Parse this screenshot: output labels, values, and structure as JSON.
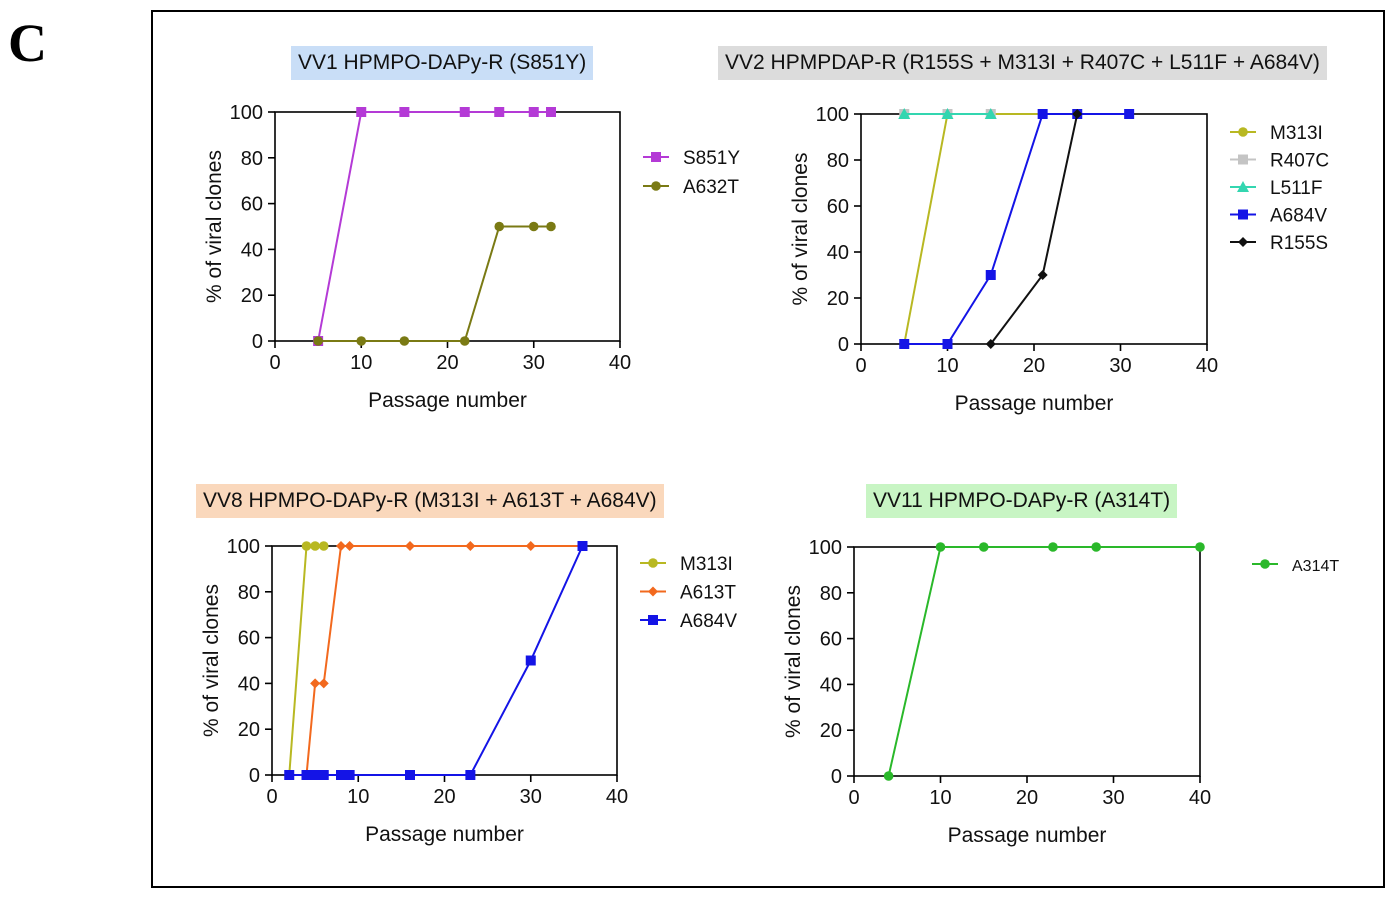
{
  "panel_label": "C",
  "chart_data": [
    {
      "type": "line",
      "title": "VV1 HPMPO-DAPy-R  (S851Y)",
      "title_bg": "#c9def7",
      "xlabel": "Passage number",
      "ylabel": "% of viral clones",
      "xlim": [
        0,
        40
      ],
      "ylim": [
        0,
        100
      ],
      "xticks": [
        0,
        10,
        20,
        30,
        40
      ],
      "yticks": [
        0,
        20,
        40,
        60,
        80,
        100
      ],
      "legend_position": "right",
      "series": [
        {
          "name": "S851Y",
          "color": "#b43ad6",
          "marker": "square",
          "x": [
            5,
            10,
            15,
            22,
            26,
            30,
            32
          ],
          "y": [
            0,
            100,
            100,
            100,
            100,
            100,
            100
          ]
        },
        {
          "name": "A632T",
          "color": "#7a7a14",
          "marker": "circle",
          "x": [
            5,
            10,
            15,
            22,
            26,
            30,
            32
          ],
          "y": [
            0,
            0,
            0,
            0,
            50,
            50,
            50
          ]
        }
      ]
    },
    {
      "type": "line",
      "title": "VV2 HPMPDAP-R  (R155S + M313I + R407C + L511F + A684V)",
      "title_bg": "#dcdcdc",
      "xlabel": "Passage number",
      "ylabel": "% of viral clones",
      "xlim": [
        0,
        40
      ],
      "ylim": [
        0,
        100
      ],
      "xticks": [
        0,
        10,
        20,
        30,
        40
      ],
      "yticks": [
        0,
        20,
        40,
        60,
        80,
        100
      ],
      "legend_position": "right",
      "series": [
        {
          "name": "M313I",
          "color": "#b8b822",
          "marker": "circle",
          "x": [
            5,
            10,
            15,
            21,
            25,
            31
          ],
          "y": [
            0,
            100,
            100,
            100,
            100,
            100
          ]
        },
        {
          "name": "R407C",
          "color": "#c4c4c4",
          "marker": "square",
          "x": [
            5,
            10,
            15
          ],
          "y": [
            100,
            100,
            100
          ]
        },
        {
          "name": "L511F",
          "color": "#33d6b0",
          "marker": "triangle",
          "x": [
            5,
            10,
            15
          ],
          "y": [
            100,
            100,
            100
          ]
        },
        {
          "name": "A684V",
          "color": "#1414e6",
          "marker": "square",
          "x": [
            5,
            10,
            15,
            21,
            25,
            31
          ],
          "y": [
            0,
            0,
            30,
            100,
            100,
            100
          ]
        },
        {
          "name": "R155S",
          "color": "#111111",
          "marker": "diamond",
          "x": [
            15,
            21,
            25
          ],
          "y": [
            0,
            30,
            100
          ]
        }
      ]
    },
    {
      "type": "line",
      "title": "VV8 HPMPO-DAPy-R  (M313I + A613T + A684V)",
      "title_bg": "#fad8bc",
      "xlabel": "Passage number",
      "ylabel": "% of viral clones",
      "xlim": [
        0,
        40
      ],
      "ylim": [
        0,
        100
      ],
      "xticks": [
        0,
        10,
        20,
        30,
        40
      ],
      "yticks": [
        0,
        20,
        40,
        60,
        80,
        100
      ],
      "legend_position": "right",
      "series": [
        {
          "name": "M313I",
          "color": "#b8b822",
          "marker": "circle",
          "x": [
            2,
            4,
            5,
            6
          ],
          "y": [
            0,
            100,
            100,
            100
          ]
        },
        {
          "name": "A613T",
          "color": "#f2691e",
          "marker": "diamond",
          "x": [
            4,
            5,
            6,
            8,
            9,
            16,
            23,
            30,
            36
          ],
          "y": [
            0,
            40,
            40,
            100,
            100,
            100,
            100,
            100,
            100
          ]
        },
        {
          "name": "A684V",
          "color": "#1414e6",
          "marker": "square",
          "x": [
            2,
            4,
            5,
            6,
            8,
            9,
            16,
            23,
            30,
            36
          ],
          "y": [
            0,
            0,
            0,
            0,
            0,
            0,
            0,
            0,
            50,
            100
          ]
        }
      ]
    },
    {
      "type": "line",
      "title": "VV11 HPMPO-DAPy-R  (A314T)",
      "title_bg": "#c8f5c4",
      "xlabel": "Passage number",
      "ylabel": "% of viral clones",
      "xlim": [
        0,
        40
      ],
      "ylim": [
        0,
        100
      ],
      "xticks": [
        0,
        10,
        20,
        30,
        40
      ],
      "yticks": [
        0,
        20,
        40,
        60,
        80,
        100
      ],
      "legend_position": "right",
      "series": [
        {
          "name": "A314T",
          "color": "#2ab82a",
          "marker": "circle",
          "x": [
            4,
            10,
            15,
            23,
            28,
            40
          ],
          "y": [
            0,
            100,
            100,
            100,
            100,
            100
          ]
        }
      ]
    }
  ]
}
